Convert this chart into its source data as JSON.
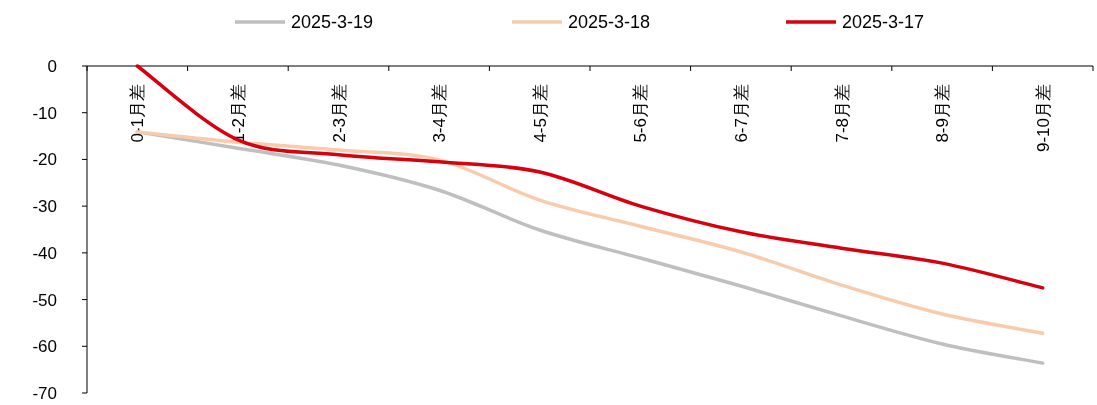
{
  "chart_data": {
    "type": "line",
    "categories": [
      "0-1月差",
      "1-2月差",
      "2-3月差",
      "3-4月差",
      "4-5月差",
      "5-6月差",
      "6-7月差",
      "7-8月差",
      "8-9月差",
      "9-10月差"
    ],
    "series": [
      {
        "name": "2025-3-19",
        "color": "#bfbfbf",
        "values": [
          -14.1,
          -17.6,
          -21.2,
          -26.6,
          -35.1,
          -41.1,
          -47.1,
          -53.5,
          -59.5,
          -63.6
        ]
      },
      {
        "name": "2025-3-18",
        "color": "#f8cbad",
        "values": [
          -14.1,
          -16.3,
          -18,
          -20.1,
          -28.7,
          -34.3,
          -39.8,
          -46.9,
          -53.1,
          -57.2
        ]
      },
      {
        "name": "2025-3-17",
        "color": "#d7000f",
        "values": [
          0,
          -15.8,
          -19,
          -20.5,
          -22.7,
          -30,
          -35.5,
          -39,
          -42.2,
          -47.5
        ]
      }
    ],
    "ylim": [
      -70,
      0
    ],
    "yticks": [
      -70,
      -60,
      -50,
      -40,
      -30,
      -20,
      -10,
      0
    ],
    "grid": false,
    "legend": "top",
    "marker": "none",
    "line_style": "solid"
  }
}
